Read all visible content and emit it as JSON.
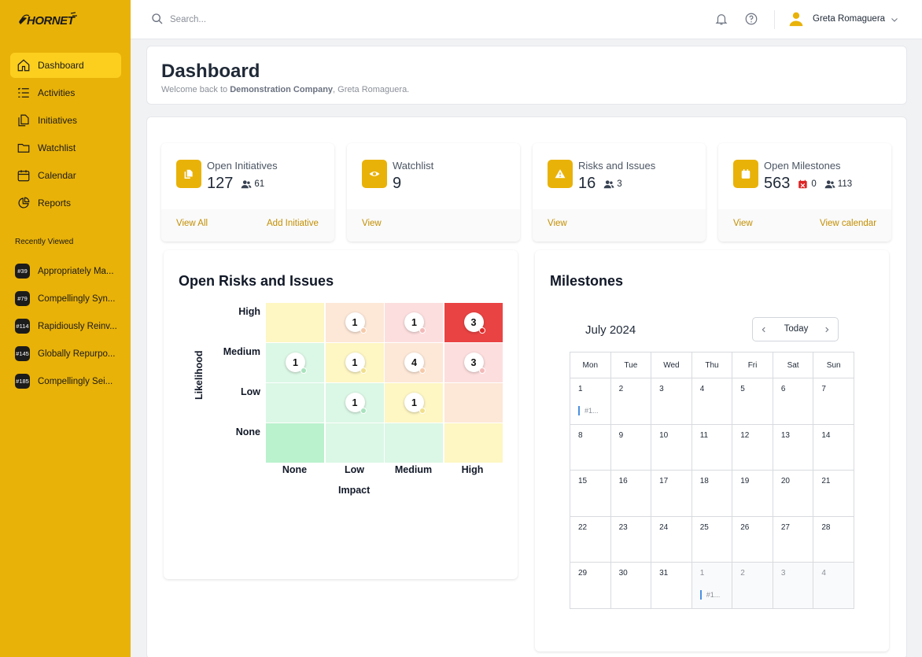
{
  "app": {
    "logo_text": "HORNET"
  },
  "sidebar": {
    "nav": [
      {
        "label": "Dashboard",
        "icon": "home-icon",
        "active": true
      },
      {
        "label": "Activities",
        "icon": "list-icon"
      },
      {
        "label": "Initiatives",
        "icon": "files-icon"
      },
      {
        "label": "Watchlist",
        "icon": "folder-icon"
      },
      {
        "label": "Calendar",
        "icon": "calendar-icon"
      },
      {
        "label": "Reports",
        "icon": "pie-chart-icon"
      }
    ],
    "recent_title": "Recently Viewed",
    "recent": [
      {
        "tag": "#39",
        "label": "Appropriately Ma..."
      },
      {
        "tag": "#79",
        "label": "Compellingly Syn..."
      },
      {
        "tag": "#114",
        "label": "Rapidiously Reinv..."
      },
      {
        "tag": "#145",
        "label": "Globally Repurpo..."
      },
      {
        "tag": "#185",
        "label": "Compellingly Sei..."
      }
    ]
  },
  "topbar": {
    "search_placeholder": "Search...",
    "user_name": "Greta Romaguera"
  },
  "header": {
    "title": "Dashboard",
    "welcome_prefix": "Welcome back to ",
    "company": "Demonstration Company",
    "welcome_suffix": ", Greta Romaguera."
  },
  "stats": [
    {
      "label": "Open Initiatives",
      "value": "127",
      "people": "61",
      "links": [
        "View All",
        "Add Initiative"
      ],
      "icon": "files-icon"
    },
    {
      "label": "Watchlist",
      "value": "9",
      "links": [
        "View"
      ],
      "icon": "eye-icon"
    },
    {
      "label": "Risks and Issues",
      "value": "16",
      "people": "3",
      "links": [
        "View"
      ],
      "icon": "warning-icon"
    },
    {
      "label": "Open Milestones",
      "value": "563",
      "overdue": "0",
      "people": "113",
      "links": [
        "View",
        "View calendar"
      ],
      "icon": "calendar-icon"
    }
  ],
  "risks": {
    "title": "Open Risks and Issues",
    "likelihood_levels": [
      "High",
      "Medium",
      "Low",
      "None"
    ],
    "impact_levels": [
      "None",
      "Low",
      "Medium",
      "High"
    ],
    "y_axis": "Likelihood",
    "x_axis": "Impact",
    "matrix": [
      [
        null,
        1,
        1,
        3
      ],
      [
        1,
        1,
        4,
        3
      ],
      [
        null,
        1,
        1,
        null
      ],
      [
        null,
        null,
        null,
        null
      ]
    ],
    "cell_colors": [
      [
        "#fef6c3",
        "#fde7d7",
        "#fddede",
        "#ea4343"
      ],
      [
        "#dbf7e5",
        "#fef6c3",
        "#fde7d7",
        "#fddede"
      ],
      [
        "#dbf7e5",
        "#dbf7e5",
        "#fef6c3",
        "#fde7d7"
      ],
      [
        "#b9f2cd",
        "#dbf7e5",
        "#dbf7e5",
        "#fef6c3"
      ]
    ]
  },
  "milestones": {
    "title": "Milestones",
    "month": "July 2024",
    "today_label": "Today",
    "weekdays": [
      "Mon",
      "Tue",
      "Wed",
      "Thu",
      "Fri",
      "Sat",
      "Sun"
    ],
    "weeks": [
      [
        "1",
        "2",
        "3",
        "4",
        "5",
        "6",
        "7"
      ],
      [
        "8",
        "9",
        "10",
        "11",
        "12",
        "13",
        "14"
      ],
      [
        "15",
        "16",
        "17",
        "18",
        "19",
        "20",
        "21"
      ],
      [
        "22",
        "23",
        "24",
        "25",
        "26",
        "27",
        "28"
      ],
      [
        "29",
        "30",
        "31",
        "1",
        "2",
        "3",
        "4"
      ]
    ],
    "event_label": "#1..."
  }
}
